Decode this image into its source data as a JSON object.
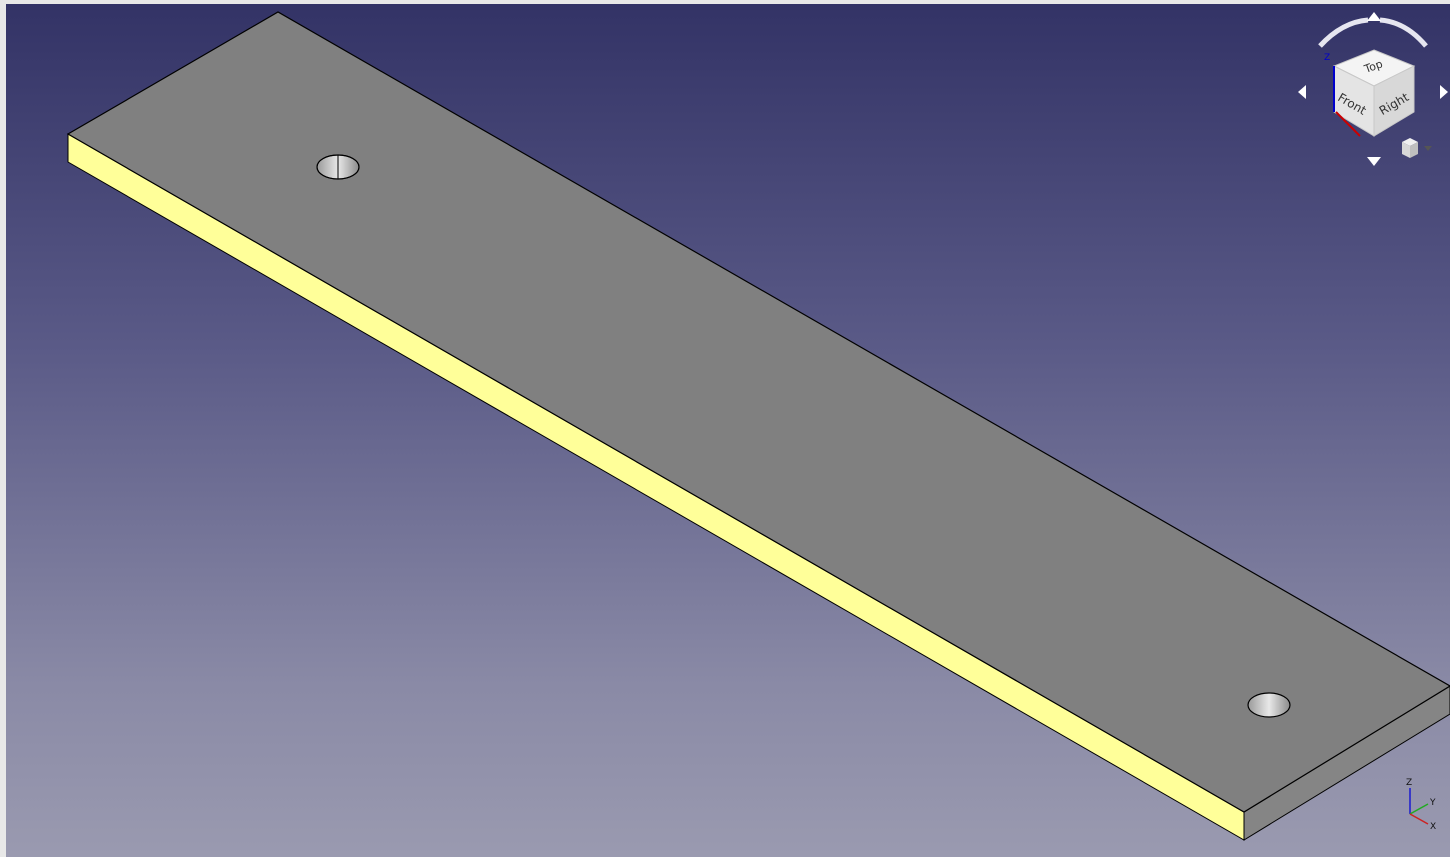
{
  "viewport": {
    "background_top": "#333366",
    "background_bottom": "#9a9ab0"
  },
  "part": {
    "top_face_color": "#808080",
    "side_face_color": "#ffff99",
    "edge_color": "#000000"
  },
  "navigation_cube": {
    "face_top": "Top",
    "face_front": "Front",
    "face_right": "Right",
    "axis_z": "Z",
    "axis_x_color": "#cc0000",
    "axis_y_color": "#00aa00",
    "axis_z_color": "#0000cc"
  },
  "axis_indicator": {
    "z_label": "Z",
    "y_label": "Y",
    "x_label": "X"
  }
}
